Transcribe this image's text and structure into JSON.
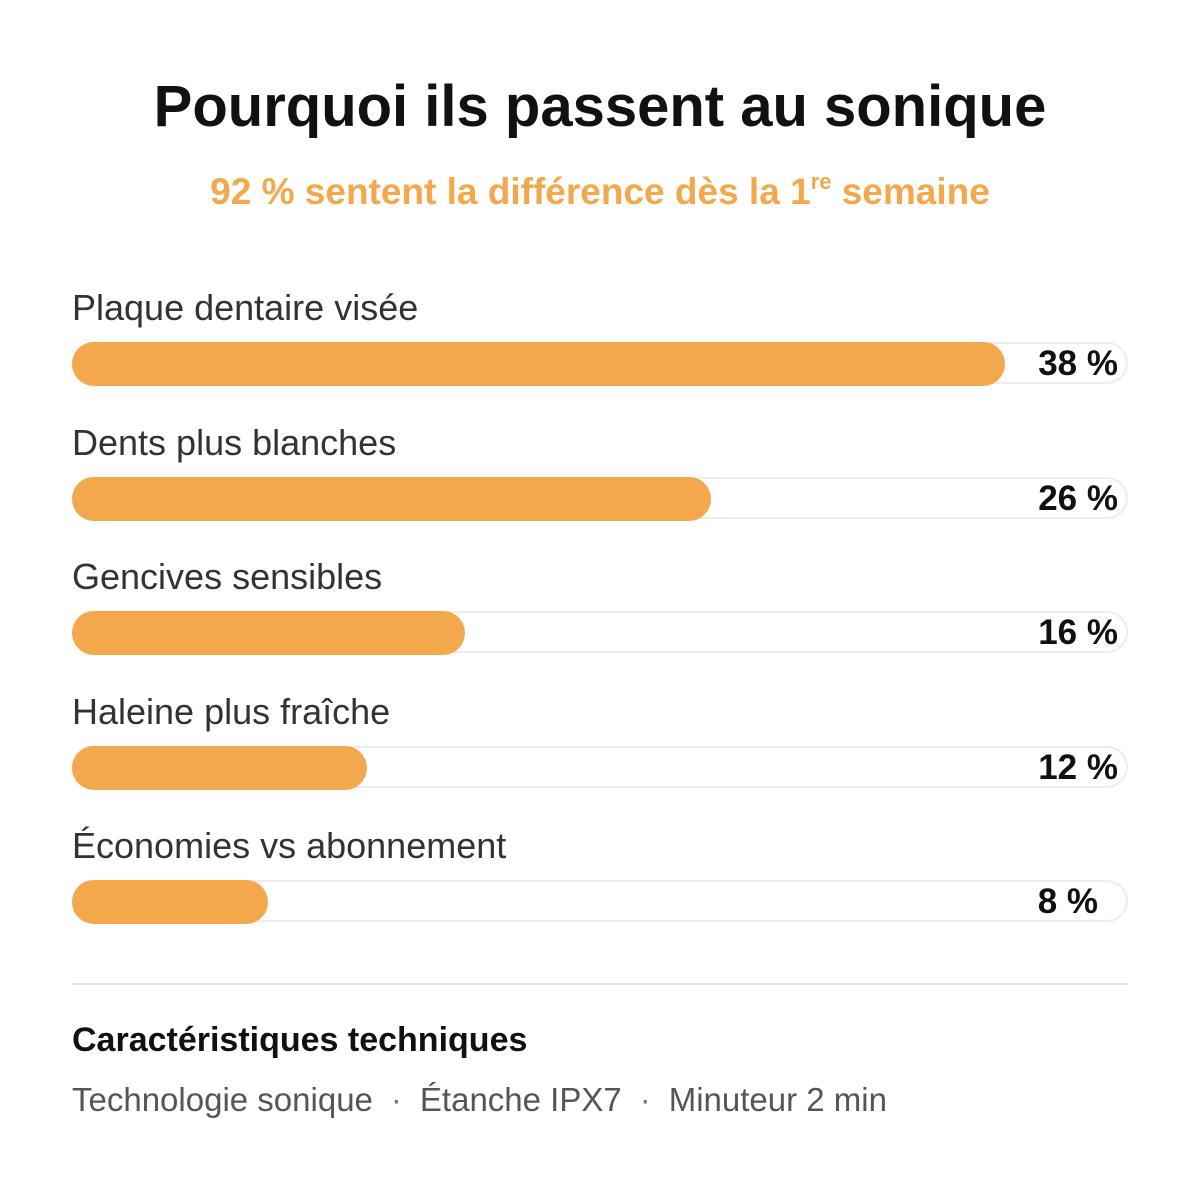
{
  "header": {
    "title": "Pourquoi ils passent au sonique",
    "subtitle_main": "92 % sentent la différence dès la 1",
    "subtitle_sup": "re",
    "subtitle_end": " semaine"
  },
  "colors": {
    "accent": "#f3a84b",
    "title": "#111111",
    "label": "#333333",
    "track_border": "#ededed"
  },
  "chart_data": {
    "type": "bar",
    "orientation": "horizontal",
    "categories": [
      "Plaque dentaire visée",
      "Dents plus blanches",
      "Gencives sensibles",
      "Haleine plus fraîche",
      "Économies vs abonnement"
    ],
    "values": [
      38,
      26,
      16,
      12,
      8
    ],
    "value_labels": [
      "38 %",
      "26 %",
      "16 %",
      "12 %",
      "8 %"
    ],
    "xlim": [
      0,
      43
    ],
    "grid": false,
    "legend": "none"
  },
  "specs": {
    "title": "Caractéristiques techniques",
    "items": [
      "Technologie sonique",
      "Étanche IPX7",
      "Minuteur 2 min"
    ],
    "separator": "·"
  }
}
